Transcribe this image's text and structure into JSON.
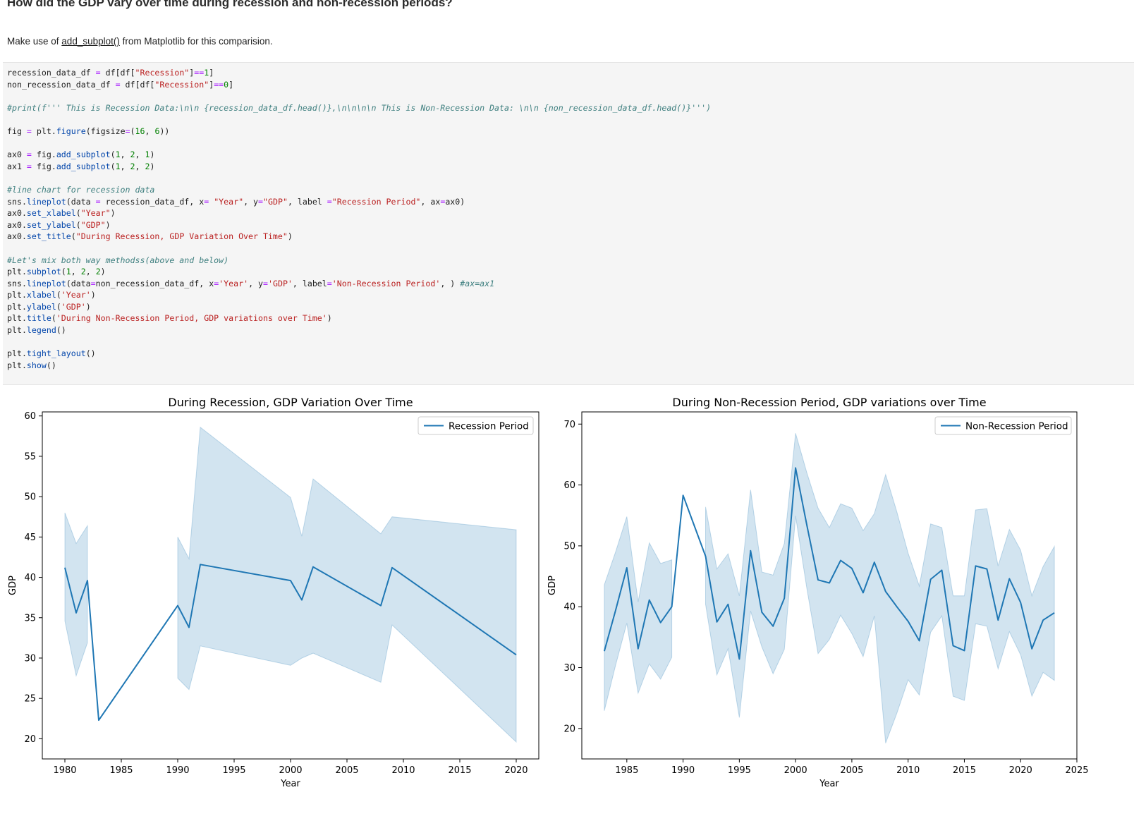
{
  "markdown": {
    "heading": "How did the GDP vary over time during recession and non-recession periods?",
    "para_before": "Make use of ",
    "para_code": "add_subplot()",
    "para_after": " from Matplotlib for this comparision."
  },
  "code_lines": [
    [
      [
        "recession_data_df ",
        "pl"
      ],
      [
        "=",
        "op"
      ],
      [
        " df[df[",
        "pl"
      ],
      [
        "\"Recession\"",
        "str"
      ],
      [
        "]",
        "pl"
      ],
      [
        "==",
        "op"
      ],
      [
        "1",
        "num"
      ],
      [
        "]",
        "pl"
      ]
    ],
    [
      [
        "non_recession_data_df ",
        "pl"
      ],
      [
        "=",
        "op"
      ],
      [
        " df[df[",
        "pl"
      ],
      [
        "\"Recession\"",
        "str"
      ],
      [
        "]",
        "pl"
      ],
      [
        "==",
        "op"
      ],
      [
        "0",
        "num"
      ],
      [
        "]",
        "pl"
      ]
    ],
    [],
    [
      [
        "#print(f''' This is Recession Data:\\n\\n {recession_data_df.head()},\\n\\n\\n\\n This is Non-Recession Data: \\n\\n {non_recession_data_df.head()}''')",
        "com"
      ]
    ],
    [],
    [
      [
        "fig ",
        "pl"
      ],
      [
        "=",
        "op"
      ],
      [
        " plt.",
        "pl"
      ],
      [
        "figure",
        "fn"
      ],
      [
        "(figsize",
        "pl"
      ],
      [
        "=",
        "op"
      ],
      [
        "(",
        "pl"
      ],
      [
        "16",
        "num"
      ],
      [
        ", ",
        "pl"
      ],
      [
        "6",
        "num"
      ],
      [
        "))",
        "pl"
      ]
    ],
    [],
    [
      [
        "ax0 ",
        "pl"
      ],
      [
        "=",
        "op"
      ],
      [
        " fig.",
        "pl"
      ],
      [
        "add_subplot",
        "fn"
      ],
      [
        "(",
        "pl"
      ],
      [
        "1",
        "num"
      ],
      [
        ", ",
        "pl"
      ],
      [
        "2",
        "num"
      ],
      [
        ", ",
        "pl"
      ],
      [
        "1",
        "num"
      ],
      [
        ")",
        "pl"
      ]
    ],
    [
      [
        "ax1 ",
        "pl"
      ],
      [
        "=",
        "op"
      ],
      [
        " fig.",
        "pl"
      ],
      [
        "add_subplot",
        "fn"
      ],
      [
        "(",
        "pl"
      ],
      [
        "1",
        "num"
      ],
      [
        ", ",
        "pl"
      ],
      [
        "2",
        "num"
      ],
      [
        ", ",
        "pl"
      ],
      [
        "2",
        "num"
      ],
      [
        ")",
        "pl"
      ]
    ],
    [],
    [
      [
        "#line chart for recession data",
        "com"
      ]
    ],
    [
      [
        "sns.",
        "pl"
      ],
      [
        "lineplot",
        "fn"
      ],
      [
        "(data ",
        "pl"
      ],
      [
        "=",
        "op"
      ],
      [
        " recession_data_df, x",
        "pl"
      ],
      [
        "=",
        "op"
      ],
      [
        " ",
        "pl"
      ],
      [
        "\"Year\"",
        "str"
      ],
      [
        ", y",
        "pl"
      ],
      [
        "=",
        "op"
      ],
      [
        "\"GDP\"",
        "str"
      ],
      [
        ", label ",
        "pl"
      ],
      [
        "=",
        "op"
      ],
      [
        "\"Recession Period\"",
        "str"
      ],
      [
        ", ax",
        "pl"
      ],
      [
        "=",
        "op"
      ],
      [
        "ax0)",
        "pl"
      ]
    ],
    [
      [
        "ax0.",
        "pl"
      ],
      [
        "set_xlabel",
        "fn"
      ],
      [
        "(",
        "pl"
      ],
      [
        "\"Year\"",
        "str"
      ],
      [
        ")",
        "pl"
      ]
    ],
    [
      [
        "ax0.",
        "pl"
      ],
      [
        "set_ylabel",
        "fn"
      ],
      [
        "(",
        "pl"
      ],
      [
        "\"GDP\"",
        "str"
      ],
      [
        ")",
        "pl"
      ]
    ],
    [
      [
        "ax0.",
        "pl"
      ],
      [
        "set_title",
        "fn"
      ],
      [
        "(",
        "pl"
      ],
      [
        "\"During Recession, GDP Variation Over Time\"",
        "str"
      ],
      [
        ")",
        "pl"
      ]
    ],
    [],
    [
      [
        "#Let's mix both way methodss(above and below)",
        "com"
      ]
    ],
    [
      [
        "plt.",
        "pl"
      ],
      [
        "subplot",
        "fn"
      ],
      [
        "(",
        "pl"
      ],
      [
        "1",
        "num"
      ],
      [
        ", ",
        "pl"
      ],
      [
        "2",
        "num"
      ],
      [
        ", ",
        "pl"
      ],
      [
        "2",
        "num"
      ],
      [
        ")",
        "pl"
      ]
    ],
    [
      [
        "sns.",
        "pl"
      ],
      [
        "lineplot",
        "fn"
      ],
      [
        "(data",
        "pl"
      ],
      [
        "=",
        "op"
      ],
      [
        "non_recession_data_df, x",
        "pl"
      ],
      [
        "=",
        "op"
      ],
      [
        "'Year'",
        "str"
      ],
      [
        ", y",
        "pl"
      ],
      [
        "=",
        "op"
      ],
      [
        "'GDP'",
        "str"
      ],
      [
        ", label",
        "pl"
      ],
      [
        "=",
        "op"
      ],
      [
        "'Non-Recession Period'",
        "str"
      ],
      [
        ", ) ",
        "pl"
      ],
      [
        "#ax=ax1",
        "com"
      ]
    ],
    [
      [
        "plt.",
        "pl"
      ],
      [
        "xlabel",
        "fn"
      ],
      [
        "(",
        "pl"
      ],
      [
        "'Year'",
        "str"
      ],
      [
        ")",
        "pl"
      ]
    ],
    [
      [
        "plt.",
        "pl"
      ],
      [
        "ylabel",
        "fn"
      ],
      [
        "(",
        "pl"
      ],
      [
        "'GDP'",
        "str"
      ],
      [
        ")",
        "pl"
      ]
    ],
    [
      [
        "plt.",
        "pl"
      ],
      [
        "title",
        "fn"
      ],
      [
        "(",
        "pl"
      ],
      [
        "'During Non-Recession Period, GDP variations over Time'",
        "str"
      ],
      [
        ")",
        "pl"
      ]
    ],
    [
      [
        "plt.",
        "pl"
      ],
      [
        "legend",
        "fn"
      ],
      [
        "()",
        "pl"
      ]
    ],
    [],
    [
      [
        "plt.",
        "pl"
      ],
      [
        "tight_layout",
        "fn"
      ],
      [
        "()",
        "pl"
      ]
    ],
    [
      [
        "plt.",
        "pl"
      ],
      [
        "show",
        "fn"
      ],
      [
        "()",
        "pl"
      ]
    ]
  ],
  "colors": {
    "line": "#1f77b4",
    "band": "#1f77b4",
    "band_opacity": 0.2
  },
  "chart_data": [
    {
      "type": "line",
      "title": "During Recession, GDP Variation Over Time",
      "xlabel": "Year",
      "ylabel": "GDP",
      "legend": "Recession Period",
      "legend_position": "top-right",
      "grid": false,
      "xlim": [
        1978,
        2022
      ],
      "ylim": [
        17.5,
        60.5
      ],
      "xticks": [
        1980,
        1985,
        1990,
        1995,
        2000,
        2005,
        2010,
        2015,
        2020
      ],
      "yticks": [
        20,
        25,
        30,
        35,
        40,
        45,
        50,
        55,
        60
      ],
      "segments": [
        {
          "x": [
            1980,
            1981,
            1982
          ],
          "y": [
            41.2,
            35.6,
            39.6
          ],
          "upper": [
            48.0,
            44.2,
            46.4
          ],
          "lower": [
            34.6,
            27.8,
            31.9
          ]
        },
        {
          "x": [
            1983
          ],
          "y": [
            22.3
          ],
          "upper": [
            22.3
          ],
          "lower": [
            22.3
          ]
        },
        {
          "x": [
            1990,
            1991,
            1992,
            2000,
            2001,
            2002,
            2008,
            2009,
            2020
          ],
          "y": [
            36.5,
            33.8,
            41.6,
            39.6,
            37.2,
            41.3,
            36.5,
            41.2,
            30.4
          ],
          "upper": [
            45.0,
            42.3,
            58.6,
            49.9,
            45.1,
            52.2,
            45.4,
            47.5,
            45.9
          ],
          "lower": [
            27.5,
            26.1,
            31.5,
            29.1,
            30.0,
            30.6,
            27.0,
            34.1,
            19.6
          ]
        }
      ]
    },
    {
      "type": "line",
      "title": "During Non-Recession Period, GDP variations over Time",
      "xlabel": "Year",
      "ylabel": "GDP",
      "legend": "Non-Recession Period",
      "legend_position": "top-right",
      "grid": false,
      "xlim": [
        1981,
        2025
      ],
      "ylim": [
        15,
        72
      ],
      "xticks": [
        1985,
        1990,
        1995,
        2000,
        2005,
        2010,
        2015,
        2020,
        2025
      ],
      "yticks": [
        20,
        30,
        40,
        50,
        60,
        70
      ],
      "segments": [
        {
          "x": [
            1983,
            1984,
            1985,
            1986,
            1987,
            1988,
            1989
          ],
          "y": [
            32.7,
            39.4,
            46.4,
            33.1,
            41.1,
            37.4,
            40.0
          ],
          "upper": [
            43.6,
            49.0,
            54.8,
            40.8,
            50.5,
            47.1,
            47.7
          ],
          "lower": [
            22.9,
            30.4,
            37.3,
            25.8,
            30.6,
            28.1,
            31.7
          ]
        },
        {
          "x": [
            1990,
            1991
          ],
          "y": [
            58.3,
            53.3
          ],
          "upper": [
            58.3,
            53.3
          ],
          "lower": [
            58.3,
            53.3
          ]
        },
        {
          "x": [
            1992,
            1993,
            1994,
            1995,
            1996,
            1997,
            1998,
            1999,
            2000,
            2001,
            2002,
            2003,
            2004,
            2005,
            2006,
            2007,
            2008,
            2009,
            2010,
            2011,
            2012,
            2013,
            2014,
            2015,
            2016,
            2017,
            2018,
            2019,
            2020,
            2021,
            2022,
            2023
          ],
          "y": [
            48.3,
            37.5,
            40.4,
            31.4,
            49.2,
            39.1,
            36.8,
            41.4,
            62.8,
            53.4,
            44.4,
            43.9,
            47.6,
            46.3,
            42.3,
            47.3,
            42.5,
            40.0,
            37.6,
            34.4,
            44.5,
            46.0,
            33.6,
            32.8,
            46.7,
            46.2,
            37.8,
            44.6,
            40.7,
            33.1,
            37.8,
            39.0
          ],
          "upper": [
            56.4,
            46.2,
            48.7,
            41.8,
            59.2,
            45.7,
            45.2,
            50.4,
            68.5,
            62.0,
            56.2,
            53.0,
            56.9,
            56.2,
            52.5,
            55.3,
            61.7,
            55.6,
            48.8,
            43.4,
            53.6,
            53.0,
            41.8,
            41.8,
            55.9,
            56.1,
            46.7,
            52.7,
            49.3,
            41.8,
            46.6,
            49.9
          ],
          "lower": [
            40.4,
            28.8,
            33.1,
            21.8,
            39.3,
            33.4,
            29.0,
            33.0,
            54.9,
            43.0,
            32.3,
            34.6,
            38.6,
            35.6,
            31.8,
            38.5,
            17.6,
            22.5,
            28.0,
            25.5,
            35.8,
            38.5,
            25.3,
            24.6,
            37.2,
            36.8,
            29.8,
            35.9,
            32.1,
            25.3,
            29.2,
            27.9
          ]
        }
      ]
    }
  ]
}
